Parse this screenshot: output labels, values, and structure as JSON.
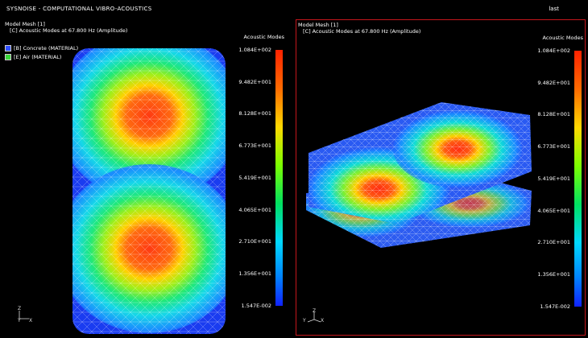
{
  "app": {
    "title": "SYSNOISE - COMPUTATIONAL VIBRO-ACOUSTICS",
    "corner_label": "last"
  },
  "left_view": {
    "header": "Model Mesh [1]",
    "subheader": "[C]  Acoustic Modes at 67.800 Hz (Amplitude)",
    "legend": [
      {
        "label": "[B] Concrete (MATERIAL)",
        "color": "#3050ff"
      },
      {
        "label": "[E] Air (MATERIAL)",
        "color": "#39d63a"
      }
    ],
    "axes": {
      "z": "Z",
      "y": "Y",
      "x": "X"
    }
  },
  "right_view": {
    "header": "Model Mesh [1]",
    "subheader": "[C]  Acoustic Modes at 67.800 Hz (Amplitude)",
    "axes": {
      "z": "Z",
      "y": "Y",
      "x": "X"
    }
  },
  "color_scale": {
    "title": "Acoustic Modes",
    "ticks": [
      "1.084E+002",
      "9.482E+001",
      "8.128E+001",
      "6.773E+001",
      "5.419E+001",
      "4.065E+001",
      "2.710E+001",
      "1.356E+001",
      "1.547E-002"
    ]
  },
  "colors": {
    "frame_border": "#c4161c",
    "background": "#000000"
  }
}
